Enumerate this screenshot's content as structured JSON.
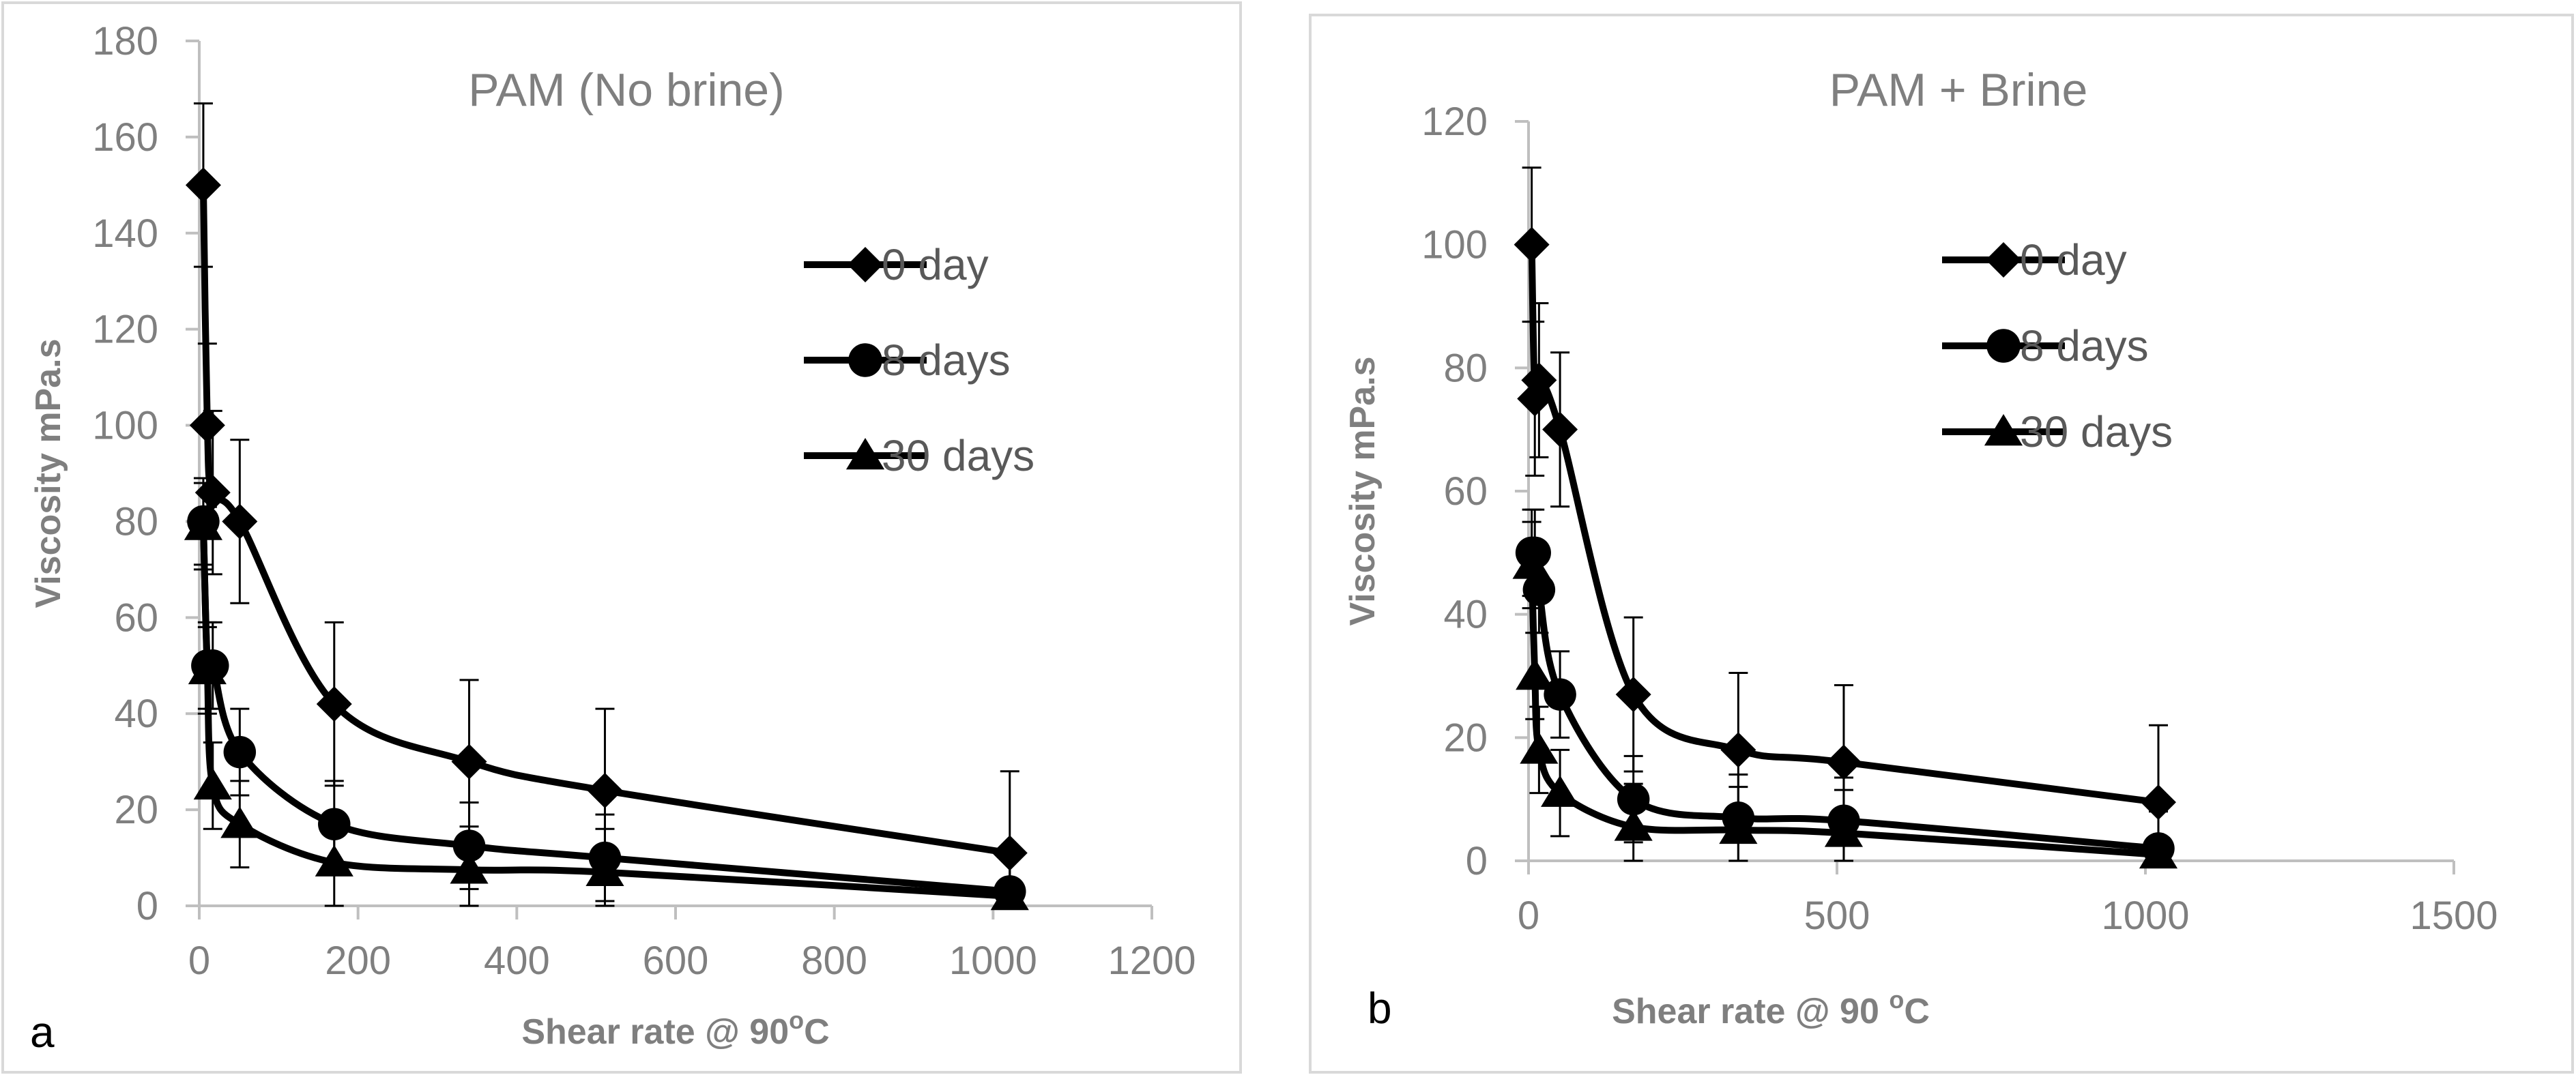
{
  "chart_data": [
    {
      "type": "line",
      "panel_label": "a",
      "title": "PAM (No brine)",
      "xlabel_main": "Shear rate @ 90",
      "xlabel_sup": "o",
      "xlabel_tail": "C",
      "ylabel": "Viscosity mPa.s",
      "xlim": [
        0,
        1200
      ],
      "ylim": [
        0,
        180
      ],
      "xticks": [
        0,
        200,
        400,
        600,
        800,
        1000,
        1200
      ],
      "yticks": [
        0,
        20,
        40,
        60,
        80,
        100,
        120,
        140,
        160,
        180
      ],
      "grid": false,
      "legend_position": "right",
      "series": [
        {
          "name": "0 day",
          "marker": "diamond",
          "x": [
            5.1,
            10.2,
            17,
            51,
            170,
            340,
            511,
            1021
          ],
          "y": [
            150,
            100,
            86,
            80,
            42,
            30,
            24,
            11
          ],
          "err": [
            17,
            17,
            17,
            17,
            17,
            17,
            17,
            17
          ]
        },
        {
          "name": "8 days",
          "marker": "circle",
          "x": [
            5.1,
            10.2,
            17,
            51,
            170,
            340,
            511,
            1021
          ],
          "y": [
            80,
            50,
            50,
            32,
            17,
            12.5,
            10,
            3
          ],
          "err": [
            9,
            9,
            9,
            9,
            9,
            9,
            9,
            9
          ]
        },
        {
          "name": "30 days",
          "marker": "triangle",
          "x": [
            5.1,
            10.2,
            17,
            51,
            170,
            340,
            511,
            1021
          ],
          "y": [
            79,
            49,
            25,
            17,
            9,
            7.5,
            7,
            2
          ],
          "err": [
            9,
            9,
            9,
            9,
            9,
            9,
            9,
            9
          ]
        }
      ]
    },
    {
      "type": "line",
      "panel_label": "b",
      "title": "PAM + Brine",
      "xlabel_main": "Shear rate @ 90 ",
      "xlabel_sup": "o",
      "xlabel_tail": "C",
      "ylabel": "Viscosity mPa.s",
      "xlim": [
        0,
        1500
      ],
      "ylim": [
        0,
        120
      ],
      "xticks": [
        0,
        500,
        1000,
        1500
      ],
      "yticks": [
        0,
        20,
        40,
        60,
        80,
        100,
        120
      ],
      "grid": false,
      "legend_position": "right",
      "series": [
        {
          "name": "0 day",
          "marker": "diamond",
          "x": [
            5.1,
            10.2,
            17,
            51,
            170,
            340,
            511,
            1021
          ],
          "y": [
            100,
            75,
            78,
            70,
            27,
            18,
            16,
            9.5
          ],
          "err": [
            12.5,
            12.5,
            12.5,
            12.5,
            12.5,
            12.5,
            12.5,
            12.5
          ]
        },
        {
          "name": "8 days",
          "marker": "circle",
          "x": [
            5.1,
            10.2,
            17,
            51,
            170,
            340,
            511,
            1021
          ],
          "y": [
            50,
            50,
            44,
            27,
            10,
            7,
            6.5,
            2
          ],
          "err": [
            7,
            7,
            7,
            7,
            7,
            7,
            7,
            7
          ]
        },
        {
          "name": "30 days",
          "marker": "triangle",
          "x": [
            5.1,
            10.2,
            17,
            51,
            170,
            340,
            511,
            1021
          ],
          "y": [
            48,
            30,
            18,
            11,
            5.5,
            5,
            4.5,
            1
          ],
          "err": [
            7,
            7,
            7,
            7,
            7,
            7,
            7,
            7
          ]
        }
      ]
    }
  ]
}
